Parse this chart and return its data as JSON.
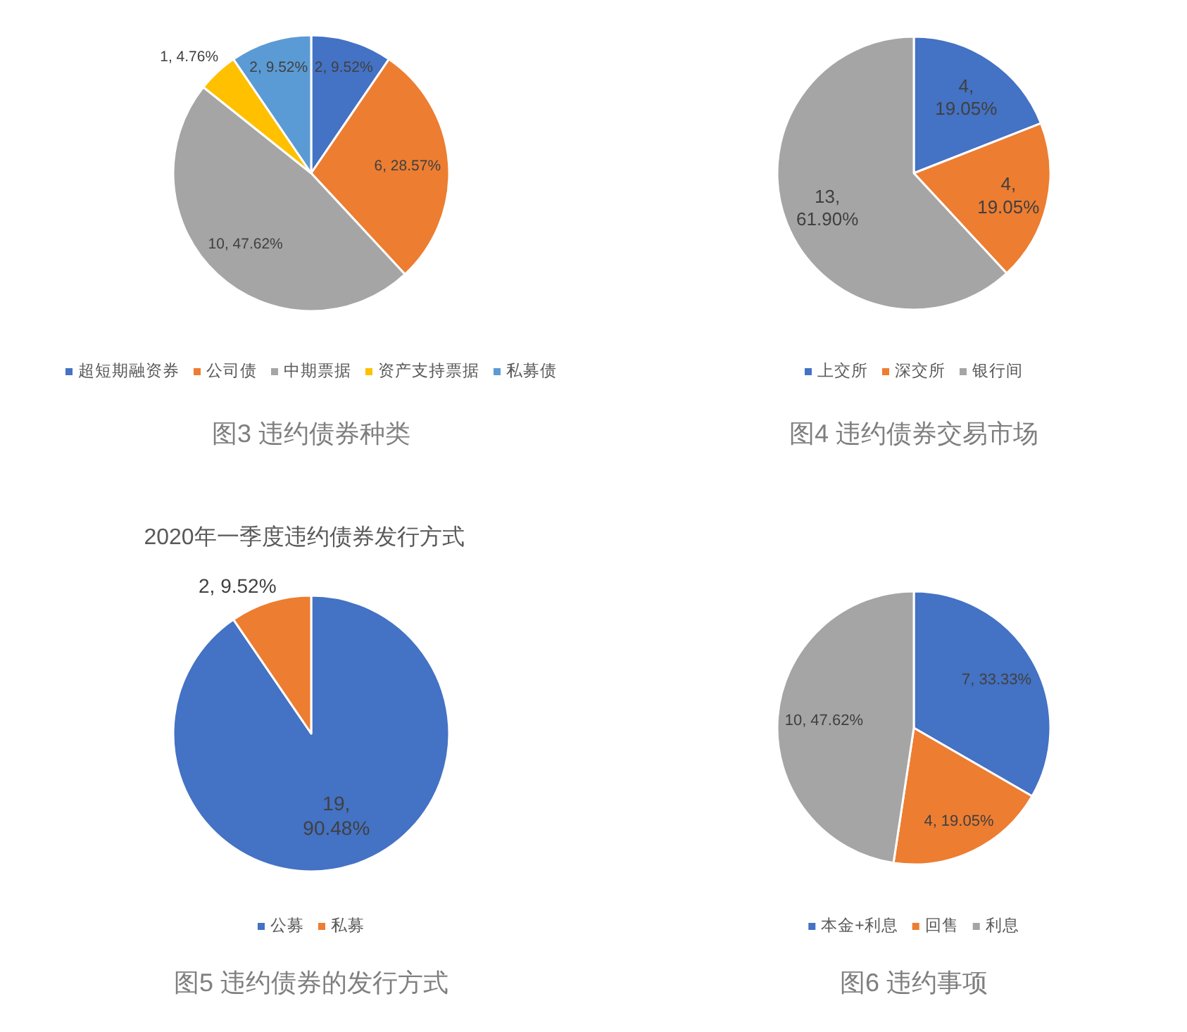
{
  "chart_data": [
    {
      "type": "pie",
      "categories": [
        "超短期融资券",
        "公司债",
        "中期票据",
        "资产支持票据",
        "私募债"
      ],
      "values": [
        2,
        6,
        10,
        1,
        2
      ],
      "colors": [
        "#4472c4",
        "#ed7d31",
        "#a5a5a5",
        "#ffc000",
        "#5b9bd5"
      ],
      "value_labels": [
        "2, 9.52%",
        "6, 28.57%",
        "10, 47.62%",
        "1, 4.76%",
        "2, 9.52%"
      ],
      "legend": "bottom",
      "annotations": [
        "图3 违约债券种类"
      ]
    },
    {
      "type": "pie",
      "categories": [
        "上交所",
        "深交所",
        "银行间"
      ],
      "values": [
        4,
        4,
        13
      ],
      "colors": [
        "#4472c4",
        "#ed7d31",
        "#a5a5a5"
      ],
      "value_labels": [
        "4, 19.05%",
        "4, 19.05%",
        "13, 61.90%"
      ],
      "legend": "bottom",
      "annotations": [
        "图4 违约债券交易市场"
      ]
    },
    {
      "type": "pie",
      "title": "2020年一季度违约债券发行方式",
      "categories": [
        "公募",
        "私募"
      ],
      "values": [
        19,
        2
      ],
      "colors": [
        "#4472c4",
        "#ed7d31"
      ],
      "value_labels": [
        "19, 90.48%",
        "2, 9.52%"
      ],
      "legend": "bottom",
      "annotations": [
        "图5 违约债券的发行方式"
      ]
    },
    {
      "type": "pie",
      "categories": [
        "本金+利息",
        "回售",
        "利息"
      ],
      "values": [
        7,
        4,
        10
      ],
      "colors": [
        "#4472c4",
        "#ed7d31",
        "#a5a5a5"
      ],
      "value_labels": [
        "7, 33.33%",
        "4, 19.05%",
        "10, 47.62%"
      ],
      "legend": "bottom",
      "annotations": [
        "图6 违约事项"
      ]
    }
  ]
}
